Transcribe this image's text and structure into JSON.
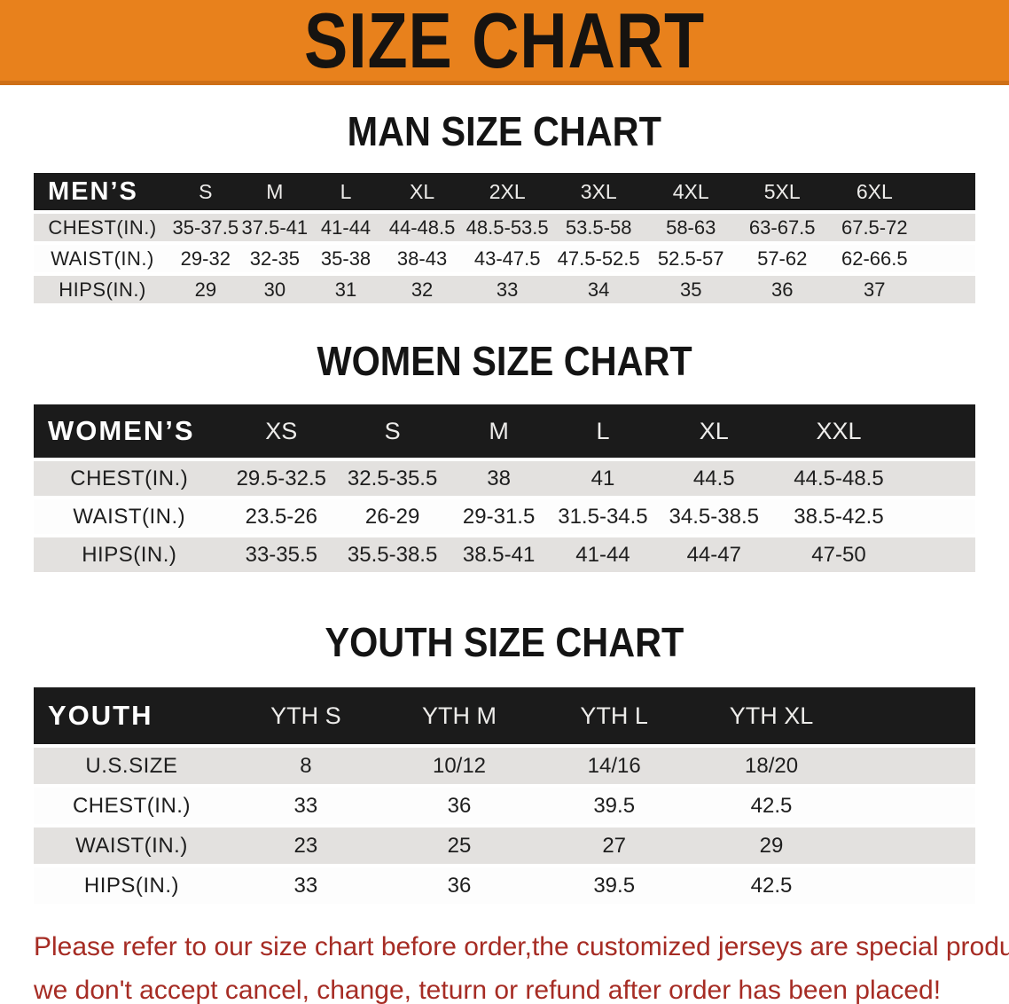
{
  "banner": {
    "title": "SIZE CHART",
    "background": "#E8811C",
    "text_color": "#161310"
  },
  "sections": [
    {
      "title": "MAN SIZE CHART",
      "table": {
        "label": "MEN’S",
        "sizes": [
          "S",
          "M",
          "L",
          "XL",
          "2XL",
          "3XL",
          "4XL",
          "5XL",
          "6XL"
        ],
        "rows": [
          {
            "label": "CHEST(IN.)",
            "values": [
              "35-37.5",
              "37.5-41",
              "41-44",
              "44-48.5",
              "48.5-53.5",
              "53.5-58",
              "58-63",
              "63-67.5",
              "67.5-72"
            ]
          },
          {
            "label": "WAIST(IN.)",
            "values": [
              "29-32",
              "32-35",
              "35-38",
              "38-43",
              "43-47.5",
              "47.5-52.5",
              "52.5-57",
              "57-62",
              "62-66.5"
            ]
          },
          {
            "label": "HIPS(IN.)",
            "values": [
              "29",
              "30",
              "31",
              "32",
              "33",
              "34",
              "35",
              "36",
              "37"
            ]
          }
        ]
      }
    },
    {
      "title": "WOMEN SIZE CHART",
      "table": {
        "label": "WOMEN’S",
        "sizes": [
          "XS",
          "S",
          "M",
          "L",
          "XL",
          "XXL"
        ],
        "rows": [
          {
            "label": "CHEST(IN.)",
            "values": [
              "29.5-32.5",
              "32.5-35.5",
              "38",
              "41",
              "44.5",
              "44.5-48.5"
            ]
          },
          {
            "label": "WAIST(IN.)",
            "values": [
              "23.5-26",
              "26-29",
              "29-31.5",
              "31.5-34.5",
              "34.5-38.5",
              "38.5-42.5"
            ]
          },
          {
            "label": "HIPS(IN.)",
            "values": [
              "33-35.5",
              "35.5-38.5",
              "38.5-41",
              "41-44",
              "44-47",
              "47-50"
            ]
          }
        ]
      }
    },
    {
      "title": "YOUTH SIZE CHART",
      "table": {
        "label": "YOUTH",
        "sizes": [
          "YTH S",
          "YTH M",
          "YTH L",
          "YTH XL"
        ],
        "rows": [
          {
            "label": "U.S.SIZE",
            "values": [
              "8",
              "10/12",
              "14/16",
              "18/20"
            ]
          },
          {
            "label": "CHEST(IN.)",
            "values": [
              "33",
              "36",
              "39.5",
              "42.5"
            ]
          },
          {
            "label": "WAIST(IN.)",
            "values": [
              "23",
              "25",
              "27",
              "29"
            ]
          },
          {
            "label": "HIPS(IN.)",
            "values": [
              "33",
              "36",
              "39.5",
              "42.5"
            ]
          }
        ]
      }
    }
  ],
  "footer": {
    "line1": "Please refer to our size chart before order,the customized jerseys are special products,",
    "line2": "we don't accept cancel, change, teturn or refund after order has been placed!",
    "text_color": "#A62C24"
  },
  "colors": {
    "header_bar": "#1B1B1B",
    "row_gray": "#E3E1DF",
    "row_white": "#FDFDFD"
  }
}
